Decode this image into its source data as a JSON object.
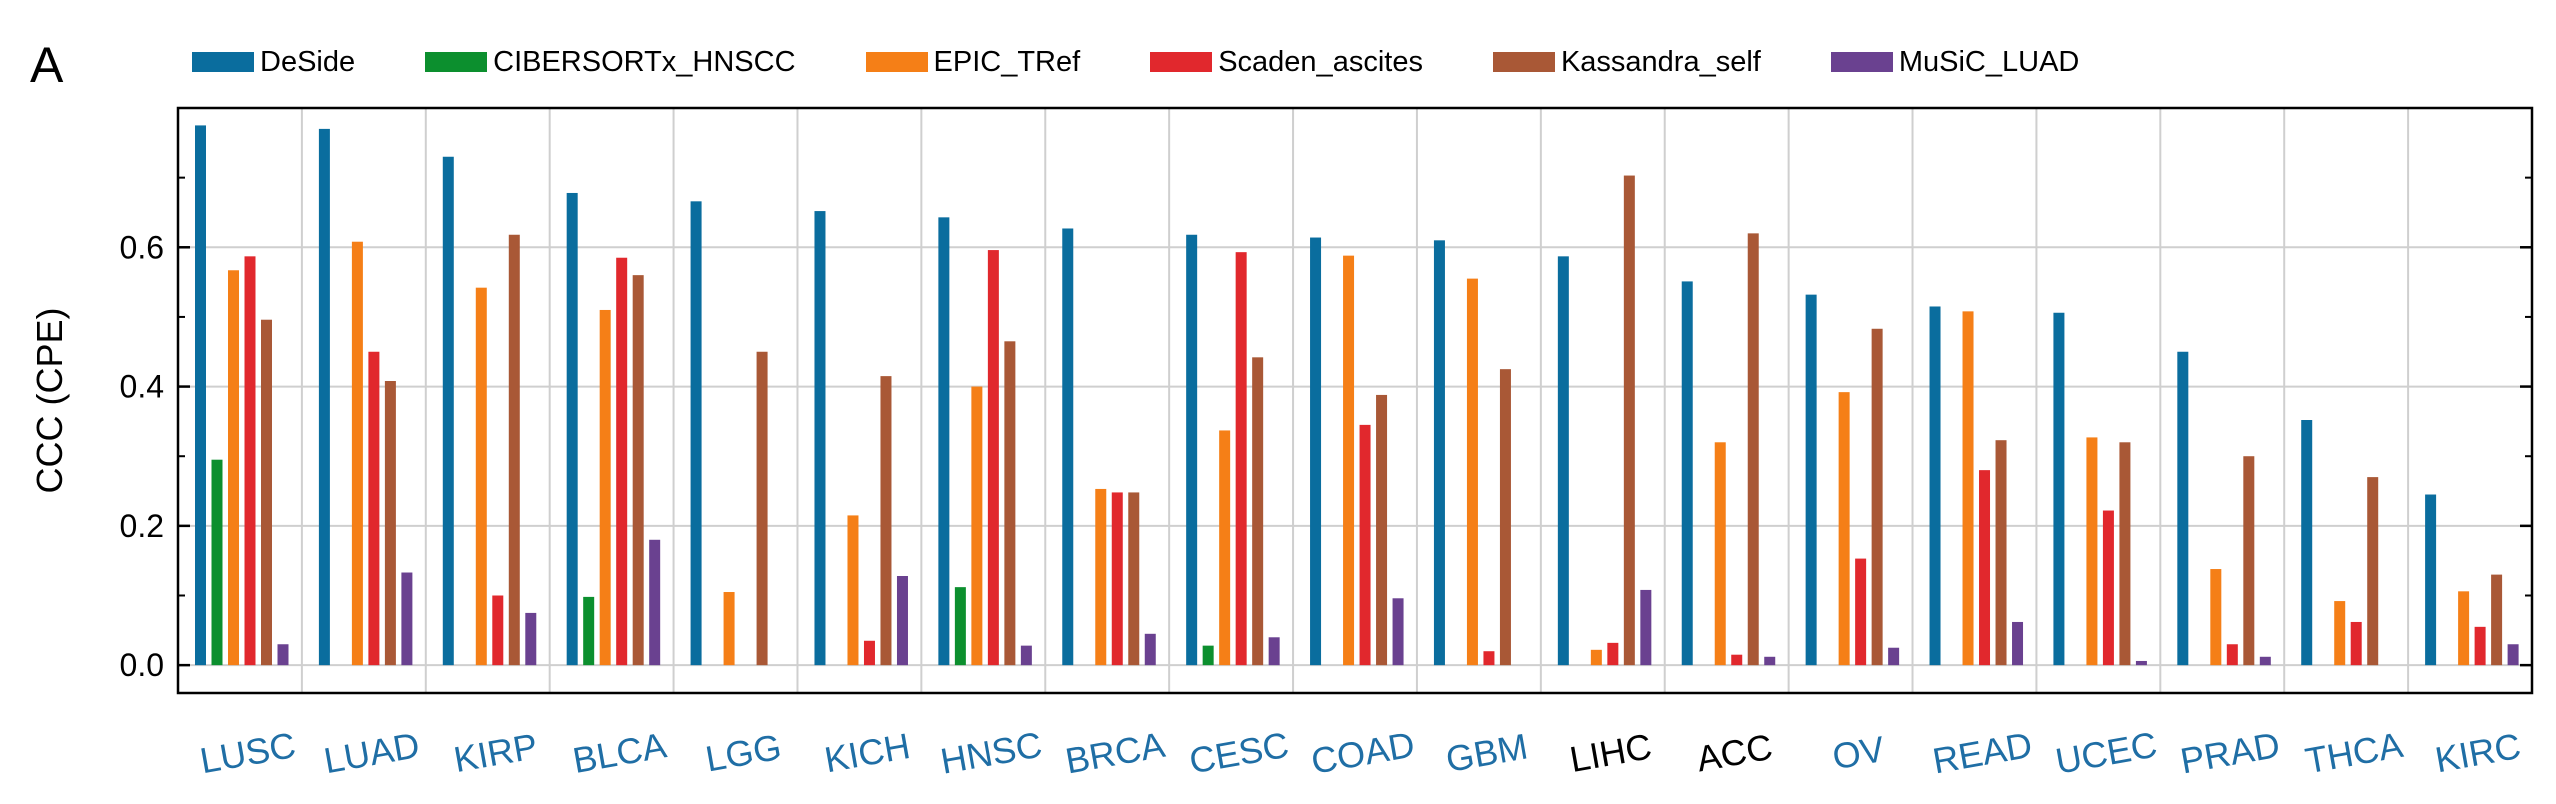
{
  "panel_label": "A",
  "colors": {
    "DeSide": "#0a6d9e",
    "CIBERSORTx_HNSCC": "#0c8f2e",
    "EPIC_TRef": "#f57f17",
    "Scaden_ascites": "#e1282d",
    "Kassandra_self": "#a95836",
    "MuSiC_LUAD": "#6a4190",
    "category_blue": "#1f6ea5",
    "category_black": "#000000",
    "grid": "#cfcfcf"
  },
  "chart_data": {
    "type": "bar",
    "title": "",
    "xlabel": "",
    "ylabel": "CCC (CPE)",
    "ylim": [
      -0.04,
      0.8
    ],
    "yticks": [
      "0.0",
      "0.2",
      "0.4",
      "0.6"
    ],
    "ytick_values": [
      0.0,
      0.2,
      0.4,
      0.6
    ],
    "grid": true,
    "legend_position": "top",
    "categories": [
      "LUSC",
      "LUAD",
      "KIRP",
      "BLCA",
      "LGG",
      "KICH",
      "HNSC",
      "BRCA",
      "CESC",
      "COAD",
      "GBM",
      "LIHC",
      "ACC",
      "OV",
      "READ",
      "UCEC",
      "PRAD",
      "THCA",
      "KIRC"
    ],
    "category_label_colors": [
      "blue",
      "blue",
      "blue",
      "blue",
      "blue",
      "blue",
      "blue",
      "blue",
      "blue",
      "blue",
      "blue",
      "black",
      "black",
      "blue",
      "blue",
      "blue",
      "blue",
      "blue",
      "blue"
    ],
    "series": [
      {
        "name": "DeSide",
        "values": [
          0.775,
          0.77,
          0.73,
          0.678,
          0.666,
          0.652,
          0.643,
          0.627,
          0.618,
          0.614,
          0.61,
          0.587,
          0.551,
          0.532,
          0.515,
          0.506,
          0.45,
          0.352,
          0.245
        ]
      },
      {
        "name": "CIBERSORTx_HNSCC",
        "values": [
          0.295,
          null,
          null,
          0.098,
          null,
          null,
          0.112,
          null,
          0.028,
          null,
          null,
          null,
          null,
          null,
          null,
          null,
          null,
          null,
          null
        ]
      },
      {
        "name": "EPIC_TRef",
        "values": [
          0.567,
          0.608,
          0.542,
          0.51,
          0.105,
          0.215,
          0.4,
          0.253,
          0.337,
          0.588,
          0.555,
          0.022,
          0.32,
          0.392,
          0.508,
          0.327,
          0.138,
          0.092,
          0.106
        ]
      },
      {
        "name": "Scaden_ascites",
        "values": [
          0.587,
          0.45,
          0.1,
          0.585,
          null,
          0.035,
          0.596,
          0.248,
          0.593,
          0.345,
          0.02,
          0.032,
          0.015,
          0.153,
          0.28,
          0.222,
          0.03,
          0.062,
          0.055
        ]
      },
      {
        "name": "Kassandra_self",
        "values": [
          0.496,
          0.408,
          0.618,
          0.56,
          0.45,
          0.415,
          0.465,
          0.248,
          0.442,
          0.388,
          0.425,
          0.703,
          0.62,
          0.483,
          0.323,
          0.32,
          0.3,
          0.27,
          0.13
        ]
      },
      {
        "name": "MuSiC_LUAD",
        "values": [
          0.03,
          0.133,
          0.075,
          0.18,
          null,
          0.128,
          0.028,
          0.045,
          0.04,
          0.096,
          null,
          0.108,
          0.012,
          0.025,
          0.062,
          0.006,
          0.012,
          null,
          0.03
        ]
      }
    ]
  }
}
